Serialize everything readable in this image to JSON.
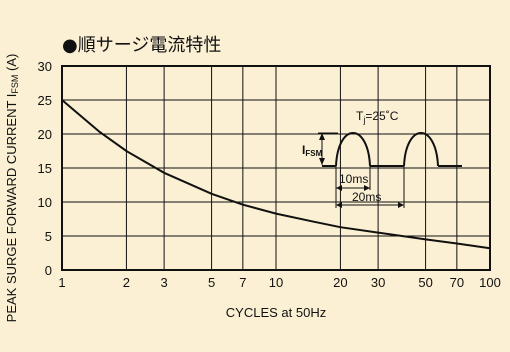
{
  "chart_data": {
    "type": "line",
    "title": "●順サージ電流特性",
    "xlabel": "CYCLES at 50Hz",
    "ylabel": "PEAK SURGE FORWARD CURRENT I",
    "ylabel_sub": "FSM",
    "ylabel_unit": " (A)",
    "xscale": "log",
    "xlim": [
      1,
      100
    ],
    "ylim": [
      0,
      30
    ],
    "grid": true,
    "x_ticks": [
      1,
      2,
      3,
      5,
      7,
      10,
      20,
      30,
      50,
      70,
      100
    ],
    "y_ticks": [
      0,
      5,
      10,
      15,
      20,
      25,
      30
    ],
    "series": [
      {
        "x": [
          1,
          1.5,
          2,
          3,
          5,
          7,
          10,
          15,
          20,
          30,
          50,
          70,
          100
        ],
        "y": [
          25,
          20.3,
          17.5,
          14.3,
          11.2,
          9.6,
          8.3,
          7.1,
          6.3,
          5.5,
          4.5,
          3.9,
          3.2
        ]
      }
    ],
    "inset": {
      "temp_prefix": "T",
      "temp_sub": "j",
      "temp_value": "=25˚C",
      "current_prefix": "I",
      "current_sub": "FSM",
      "pulse_label": "10ms",
      "period_label": "20ms"
    }
  },
  "colors": {
    "background": "#fbf0d3",
    "ink": "#111111"
  }
}
